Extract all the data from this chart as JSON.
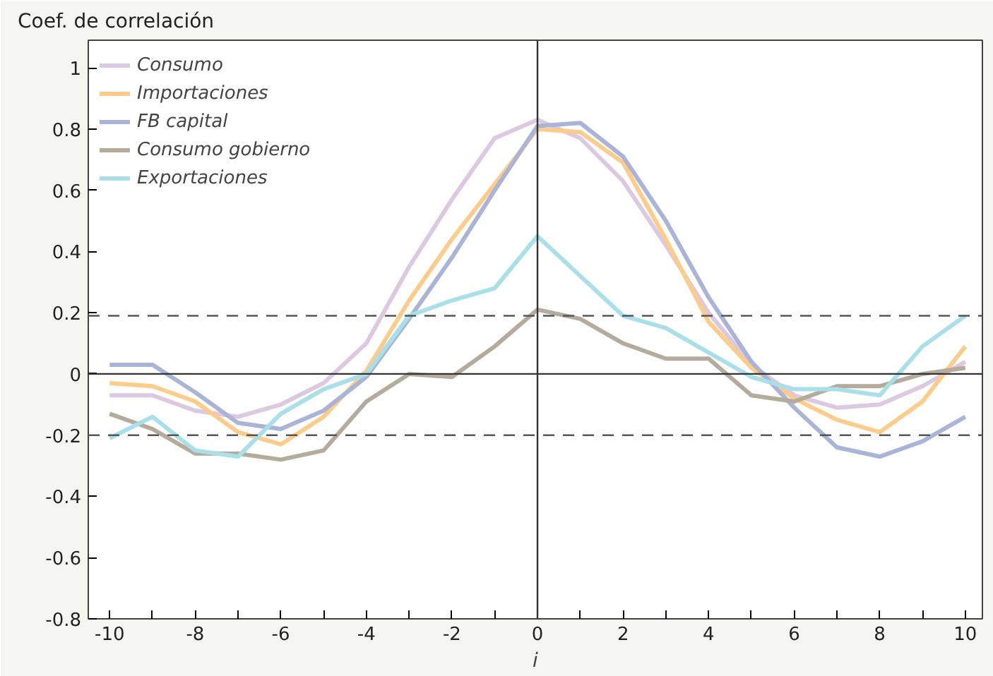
{
  "chart_data": {
    "type": "line",
    "ylabel": "Coef. de correlación",
    "xlabel": "i",
    "x": [
      -10,
      -9,
      -8,
      -7,
      -6,
      -5,
      -4,
      -3,
      -2,
      -1,
      0,
      1,
      2,
      3,
      4,
      5,
      6,
      7,
      8,
      9,
      10
    ],
    "series": [
      {
        "name": "Consumo",
        "color": "#dcc8e0",
        "values": [
          -0.07,
          -0.07,
          -0.12,
          -0.14,
          -0.1,
          -0.03,
          0.1,
          0.35,
          0.57,
          0.77,
          0.83,
          0.77,
          0.63,
          0.42,
          0.2,
          0.03,
          -0.07,
          -0.11,
          -0.1,
          -0.04,
          0.04
        ]
      },
      {
        "name": "Importaciones",
        "color": "#fdcb8a",
        "values": [
          -0.03,
          -0.04,
          -0.09,
          -0.19,
          -0.23,
          -0.14,
          0.01,
          0.24,
          0.44,
          0.62,
          0.8,
          0.79,
          0.69,
          0.44,
          0.17,
          0.02,
          -0.08,
          -0.15,
          -0.19,
          -0.09,
          0.09
        ]
      },
      {
        "name": "FB capital",
        "color": "#a9b4d6",
        "values": [
          0.03,
          0.03,
          -0.06,
          -0.16,
          -0.18,
          -0.12,
          -0.01,
          0.18,
          0.38,
          0.6,
          0.81,
          0.82,
          0.71,
          0.5,
          0.25,
          0.04,
          -0.11,
          -0.24,
          -0.27,
          -0.22,
          -0.14
        ]
      },
      {
        "name": "Consumo gobierno",
        "color": "#b5ab9d",
        "values": [
          -0.13,
          -0.18,
          -0.26,
          -0.26,
          -0.28,
          -0.25,
          -0.09,
          0.0,
          -0.01,
          0.09,
          0.21,
          0.18,
          0.1,
          0.05,
          0.05,
          -0.07,
          -0.09,
          -0.04,
          -0.04,
          0.0,
          0.02
        ]
      },
      {
        "name": "Exportaciones",
        "color": "#a8dfe8",
        "values": [
          -0.21,
          -0.14,
          -0.25,
          -0.27,
          -0.13,
          -0.05,
          0.0,
          0.19,
          0.24,
          0.28,
          0.45,
          0.32,
          0.19,
          0.15,
          0.07,
          -0.01,
          -0.05,
          -0.05,
          -0.07,
          0.09,
          0.19
        ]
      }
    ],
    "xlim": [
      -10.5,
      10.4
    ],
    "ylim": [
      -0.8,
      1.09
    ],
    "xticks": [
      -10,
      {
        "value": -9,
        "label": null
      },
      -8,
      {
        "value": -7,
        "label": null
      },
      -6,
      {
        "value": -5,
        "label": null
      },
      -4,
      {
        "value": -3,
        "label": null
      },
      -2,
      {
        "value": -1,
        "label": null
      },
      0,
      {
        "value": 1,
        "label": null
      },
      2,
      {
        "value": 3,
        "label": null
      },
      4,
      {
        "value": 5,
        "label": null
      },
      6,
      {
        "value": 7,
        "label": null
      },
      8,
      {
        "value": 9,
        "label": null
      },
      10
    ],
    "yticks": [
      -0.8,
      -0.6,
      -0.4,
      -0.2,
      0,
      0.2,
      0.4,
      0.6,
      0.8,
      1
    ],
    "ref_lines": [
      {
        "axis": "y",
        "value": 0,
        "color": "#333333",
        "line_style": "solid"
      },
      {
        "axis": "x",
        "value": 0,
        "color": "#333333",
        "line_style": "solid"
      },
      {
        "axis": "y",
        "value": 0.19,
        "color": "#555555",
        "line_style": "dashed"
      },
      {
        "axis": "y",
        "value": -0.2,
        "color": "#555555",
        "line_style": "dashed"
      }
    ],
    "grid": false,
    "legend": "top left",
    "marker": "none",
    "line_style": "solid"
  }
}
